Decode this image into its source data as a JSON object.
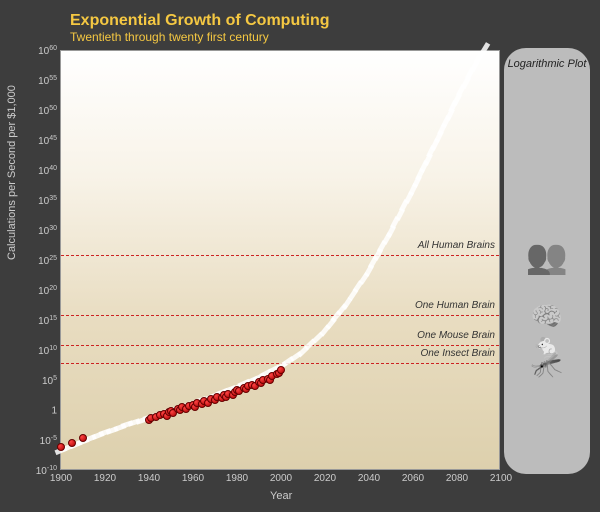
{
  "title": "Exponential Growth of Computing",
  "subtitle": "Twentieth through twenty first century",
  "y_axis_label": "Calculations per Second per $1,000",
  "x_axis_label": "Year",
  "panel_label": "Logarithmic Plot",
  "chart": {
    "type": "scatter-log",
    "x_min": 1900,
    "x_max": 2100,
    "y_exp_min": -10,
    "y_exp_max": 60,
    "x_ticks": [
      1900,
      1920,
      1940,
      1960,
      1980,
      2000,
      2020,
      2040,
      2060,
      2080,
      2100
    ],
    "y_exponents": [
      -10,
      -5,
      0,
      5,
      10,
      15,
      20,
      25,
      30,
      35,
      40,
      45,
      50,
      55,
      60
    ],
    "background_top": "#ffffff",
    "background_bottom": "#ddd0ad",
    "point_color": "#cc1111",
    "trend_color": "#ffffff",
    "ref_line_color": "#cc2222",
    "axis_label_color": "#cccccc",
    "title_color": "#f5c842",
    "point_radius": 4,
    "trend_dash_width": 12,
    "trend_dash_height": 5
  },
  "reference_lines": [
    {
      "label": "All Human Brains",
      "y_exp": 26
    },
    {
      "label": "One Human Brain",
      "y_exp": 16
    },
    {
      "label": "One Mouse Brain",
      "y_exp": 11
    },
    {
      "label": "One Insect Brain",
      "y_exp": 8
    }
  ],
  "data_points": [
    {
      "x": 1900,
      "y_exp": -6.0
    },
    {
      "x": 1905,
      "y_exp": -5.3
    },
    {
      "x": 1910,
      "y_exp": -4.5
    },
    {
      "x": 1940,
      "y_exp": -1.5
    },
    {
      "x": 1941,
      "y_exp": -1.2
    },
    {
      "x": 1943,
      "y_exp": -1.0
    },
    {
      "x": 1945,
      "y_exp": -0.7
    },
    {
      "x": 1947,
      "y_exp": -0.5
    },
    {
      "x": 1948,
      "y_exp": -0.9
    },
    {
      "x": 1949,
      "y_exp": -0.2
    },
    {
      "x": 1950,
      "y_exp": 0.0
    },
    {
      "x": 1951,
      "y_exp": -0.3
    },
    {
      "x": 1953,
      "y_exp": 0.3
    },
    {
      "x": 1954,
      "y_exp": 0.1
    },
    {
      "x": 1955,
      "y_exp": 0.6
    },
    {
      "x": 1957,
      "y_exp": 0.4
    },
    {
      "x": 1958,
      "y_exp": 0.9
    },
    {
      "x": 1960,
      "y_exp": 1.0
    },
    {
      "x": 1961,
      "y_exp": 0.7
    },
    {
      "x": 1962,
      "y_exp": 1.3
    },
    {
      "x": 1964,
      "y_exp": 1.1
    },
    {
      "x": 1965,
      "y_exp": 1.6
    },
    {
      "x": 1967,
      "y_exp": 1.4
    },
    {
      "x": 1968,
      "y_exp": 2.0
    },
    {
      "x": 1970,
      "y_exp": 1.8
    },
    {
      "x": 1971,
      "y_exp": 2.3
    },
    {
      "x": 1973,
      "y_exp": 2.1
    },
    {
      "x": 1974,
      "y_exp": 2.6
    },
    {
      "x": 1975,
      "y_exp": 2.4
    },
    {
      "x": 1976,
      "y_exp": 2.9
    },
    {
      "x": 1978,
      "y_exp": 2.7
    },
    {
      "x": 1979,
      "y_exp": 3.2
    },
    {
      "x": 1980,
      "y_exp": 3.5
    },
    {
      "x": 1981,
      "y_exp": 3.3
    },
    {
      "x": 1983,
      "y_exp": 3.8
    },
    {
      "x": 1984,
      "y_exp": 3.6
    },
    {
      "x": 1985,
      "y_exp": 4.1
    },
    {
      "x": 1987,
      "y_exp": 4.4
    },
    {
      "x": 1988,
      "y_exp": 4.2
    },
    {
      "x": 1990,
      "y_exp": 4.8
    },
    {
      "x": 1991,
      "y_exp": 4.6
    },
    {
      "x": 1992,
      "y_exp": 5.1
    },
    {
      "x": 1994,
      "y_exp": 5.4
    },
    {
      "x": 1995,
      "y_exp": 5.2
    },
    {
      "x": 1996,
      "y_exp": 5.8
    },
    {
      "x": 1998,
      "y_exp": 6.1
    },
    {
      "x": 1999,
      "y_exp": 6.4
    },
    {
      "x": 2000,
      "y_exp": 6.8
    }
  ],
  "trend_samples": [
    {
      "x": 1900,
      "y_exp": -6.5
    },
    {
      "x": 1910,
      "y_exp": -5.0
    },
    {
      "x": 1920,
      "y_exp": -3.6
    },
    {
      "x": 1930,
      "y_exp": -2.3
    },
    {
      "x": 1940,
      "y_exp": -1.1
    },
    {
      "x": 1950,
      "y_exp": 0.1
    },
    {
      "x": 1960,
      "y_exp": 1.3
    },
    {
      "x": 1970,
      "y_exp": 2.6
    },
    {
      "x": 1980,
      "y_exp": 4.0
    },
    {
      "x": 1990,
      "y_exp": 5.6
    },
    {
      "x": 2000,
      "y_exp": 7.5
    },
    {
      "x": 2010,
      "y_exp": 10.0
    },
    {
      "x": 2020,
      "y_exp": 13.5
    },
    {
      "x": 2030,
      "y_exp": 18.0
    },
    {
      "x": 2040,
      "y_exp": 23.5
    },
    {
      "x": 2050,
      "y_exp": 30.0
    },
    {
      "x": 2060,
      "y_exp": 37.0
    },
    {
      "x": 2070,
      "y_exp": 44.5
    },
    {
      "x": 2080,
      "y_exp": 52.0
    },
    {
      "x": 2090,
      "y_exp": 59.0
    },
    {
      "x": 2095,
      "y_exp": 62.0
    }
  ],
  "panel_icons": [
    {
      "name": "human-brains-icon",
      "y_exp": 26,
      "emoji": "👥",
      "size": 34
    },
    {
      "name": "human-brain-icon",
      "y_exp": 16,
      "emoji": "🧠",
      "size": 26
    },
    {
      "name": "mouse-icon",
      "y_exp": 11,
      "emoji": "🐁",
      "size": 24
    },
    {
      "name": "insect-icon",
      "y_exp": 8,
      "emoji": "🦟",
      "size": 26
    }
  ]
}
